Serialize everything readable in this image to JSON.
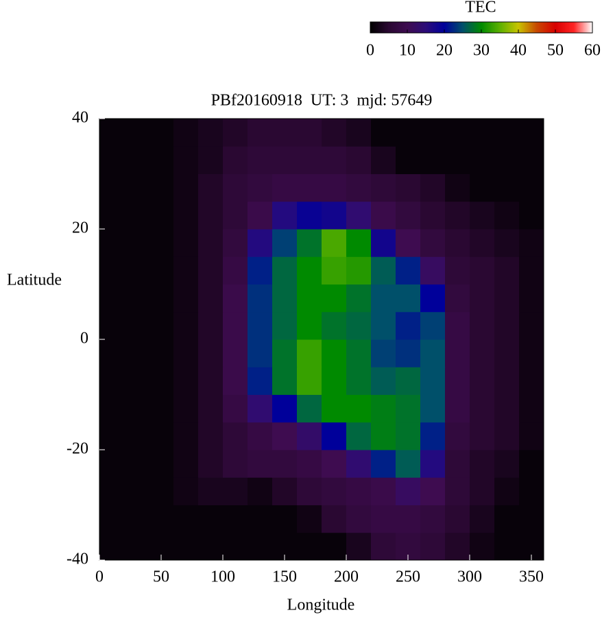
{
  "chart_data": {
    "type": "heatmap",
    "title": "PBf20160918  UT: 3  mjd: 57649",
    "xlabel": "Longitude",
    "ylabel": "Latitude",
    "colorbar_label": "TEC",
    "x": [
      10,
      30,
      50,
      70,
      90,
      110,
      130,
      150,
      170,
      190,
      210,
      230,
      250,
      270,
      290,
      310,
      330,
      350
    ],
    "y": [
      -37.5,
      -32.5,
      -27.5,
      -22.5,
      -17.5,
      -12.5,
      -7.5,
      -2.5,
      2.5,
      7.5,
      12.5,
      17.5,
      22.5,
      27.5,
      32.5,
      37.5
    ],
    "z": [
      [
        1,
        1,
        1,
        1,
        1,
        1,
        1,
        1,
        1,
        1,
        3,
        6,
        7,
        6,
        4,
        2,
        1,
        1
      ],
      [
        1,
        1,
        1,
        1,
        1,
        1,
        1,
        1,
        2,
        5,
        7,
        8,
        8,
        7,
        5,
        3,
        1,
        1
      ],
      [
        1,
        1,
        1,
        2,
        3,
        3,
        2,
        4,
        6,
        7,
        8,
        9,
        12,
        10,
        6,
        4,
        2,
        1
      ],
      [
        1,
        1,
        1,
        2,
        4,
        6,
        7,
        7,
        8,
        10,
        14,
        22,
        26,
        16,
        6,
        4,
        3,
        1
      ],
      [
        1,
        1,
        1,
        2,
        4,
        6,
        8,
        10,
        13,
        20,
        27,
        29,
        28,
        22,
        7,
        5,
        4,
        2
      ],
      [
        1,
        1,
        1,
        2,
        4,
        8,
        14,
        20,
        27,
        30,
        30,
        29,
        28,
        25,
        8,
        5,
        4,
        2
      ],
      [
        1,
        1,
        1,
        2,
        4,
        9,
        22,
        28,
        33,
        30,
        28,
        26,
        27,
        25,
        8,
        5,
        4,
        2
      ],
      [
        1,
        1,
        1,
        2,
        4,
        9,
        23,
        28,
        33,
        30,
        28,
        24,
        23,
        25,
        8,
        5,
        4,
        2
      ],
      [
        1,
        1,
        1,
        2,
        4,
        9,
        23,
        27,
        30,
        28,
        27,
        25,
        22,
        24,
        8,
        5,
        4,
        2
      ],
      [
        1,
        1,
        1,
        2,
        4,
        9,
        23,
        27,
        30,
        30,
        28,
        25,
        25,
        20,
        7,
        5,
        4,
        2
      ],
      [
        1,
        1,
        1,
        2,
        4,
        8,
        22,
        27,
        30,
        33,
        32,
        26,
        22,
        12,
        6,
        5,
        4,
        2
      ],
      [
        1,
        1,
        1,
        2,
        4,
        7,
        16,
        24,
        28,
        34,
        30,
        18,
        10,
        7,
        5,
        4,
        3,
        2
      ],
      [
        1,
        1,
        1,
        2,
        4,
        6,
        9,
        16,
        19,
        18,
        14,
        9,
        7,
        5,
        4,
        3,
        2,
        1
      ],
      [
        1,
        1,
        1,
        2,
        4,
        6,
        7,
        8,
        8,
        8,
        7,
        6,
        5,
        4,
        2,
        1,
        1,
        1
      ],
      [
        1,
        1,
        1,
        2,
        3,
        5,
        6,
        6,
        6,
        6,
        5,
        3,
        1,
        1,
        1,
        1,
        1,
        1
      ],
      [
        1,
        1,
        1,
        2,
        3,
        4,
        5,
        5,
        5,
        4,
        3,
        1,
        1,
        1,
        1,
        1,
        1,
        1
      ]
    ],
    "xlim": [
      0,
      360
    ],
    "ylim": [
      -40,
      40
    ],
    "xticks": [
      0,
      50,
      100,
      150,
      200,
      250,
      300,
      350
    ],
    "yticks": [
      -40,
      -20,
      0,
      20,
      40
    ],
    "zlim": [
      0,
      60
    ],
    "zticks": [
      0,
      10,
      20,
      30,
      40,
      50,
      60
    ],
    "colormap": [
      "#000000",
      "#2a0832",
      "#3e0c50",
      "#2c0c78",
      "#00009a",
      "#00506a",
      "#008a00",
      "#5cb000",
      "#c8c400",
      "#c84800",
      "#d80000",
      "#ff2424",
      "#ffffff"
    ]
  }
}
